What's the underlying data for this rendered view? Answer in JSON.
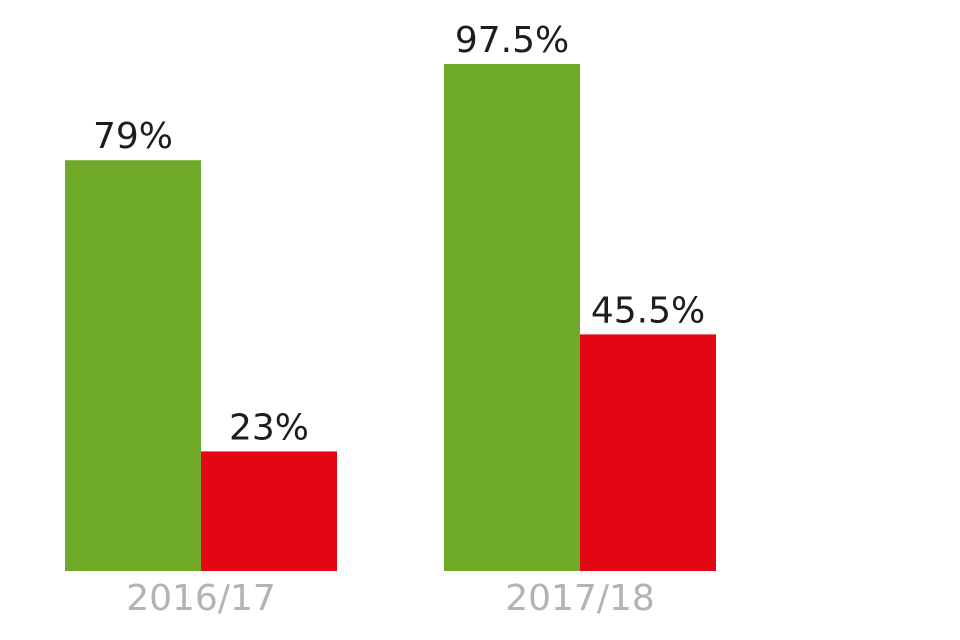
{
  "chart_data": {
    "type": "bar",
    "categories": [
      "2016/17",
      "2017/18"
    ],
    "series": [
      {
        "values": [
          79,
          97.5
        ],
        "labels": [
          "79%",
          "97.5%"
        ],
        "color": "#6fa928"
      },
      {
        "values": [
          23,
          45.5
        ],
        "labels": [
          "23%",
          "45.5%"
        ],
        "color": "#e30613"
      }
    ],
    "ylim": [
      0,
      100
    ],
    "grid": false,
    "legend": "none",
    "title": "",
    "xlabel": "",
    "ylabel": ""
  }
}
